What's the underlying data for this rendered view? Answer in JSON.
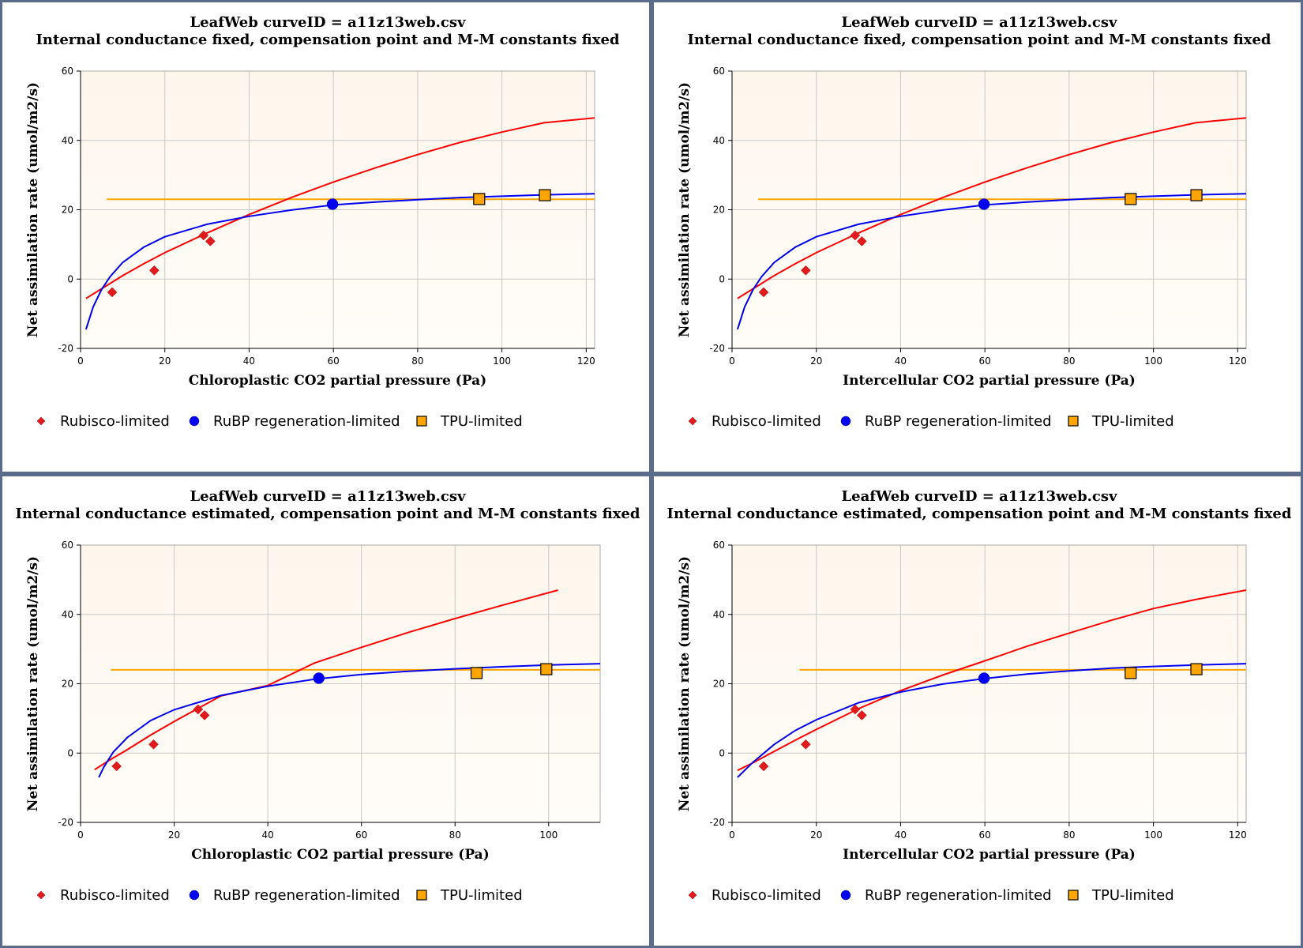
{
  "chart_data": [
    {
      "type": "scatter",
      "title": "LeafWeb curveID = a11z13web.csv",
      "subtitle": "Internal conductance fixed, compensation point and M-M constants fixed",
      "xlabel": "Chloroplastic CO2 partial pressure (Pa)",
      "ylabel": "Net assimilation rate (umol/m2/s)",
      "xlim": [
        0,
        122
      ],
      "ylim": [
        -20,
        60
      ],
      "xticks": [
        0,
        20,
        40,
        60,
        80,
        100,
        120
      ],
      "yticks": [
        -20,
        0,
        20,
        40,
        60
      ],
      "grid": true,
      "legend_position": "bottom",
      "series": [
        {
          "name": "Rubisco-limited",
          "marker": "diamond",
          "color": "#e31a1c",
          "x": [
            7.5,
            17.5,
            29.2,
            30.8
          ],
          "y": [
            -3.8,
            2.5,
            12.6,
            10.9
          ]
        },
        {
          "name": "RuBP regeneration-limited",
          "marker": "circle",
          "color": "#0000ee",
          "x": [
            59.8
          ],
          "y": [
            21.6
          ]
        },
        {
          "name": "TPU-limited",
          "marker": "square",
          "color": "#ffa500",
          "x": [
            94.6,
            110.2
          ],
          "y": [
            23.1,
            24.2
          ]
        }
      ],
      "curves": [
        {
          "series": "Rubisco-limited",
          "color": "#ff0000",
          "x": [
            1.3,
            5,
            10,
            15,
            20,
            30,
            40,
            50,
            60,
            70,
            80,
            90,
            100,
            110,
            122
          ],
          "y": [
            -5.6,
            -2.8,
            1,
            4.4,
            7.6,
            13.3,
            18.6,
            23.5,
            28.0,
            32.1,
            35.9,
            39.4,
            42.4,
            45.1,
            46.5
          ]
        },
        {
          "series": "RuBP regeneration-limited",
          "color": "#0000ee",
          "x": [
            1.3,
            3,
            5,
            7,
            10,
            15,
            20,
            30,
            40,
            50,
            60,
            70,
            80,
            90,
            100,
            110,
            122
          ],
          "y": [
            -14.5,
            -8,
            -3,
            0.7,
            4.8,
            9.2,
            12.2,
            15.8,
            18.1,
            19.9,
            21.4,
            22.2,
            22.9,
            23.5,
            23.9,
            24.3,
            24.6
          ]
        },
        {
          "series": "TPU-limited",
          "color": "#ffa500",
          "x": [
            6.2,
            122
          ],
          "y": [
            23.0,
            23.0
          ]
        }
      ]
    },
    {
      "type": "scatter",
      "title": "LeafWeb curveID = a11z13web.csv",
      "subtitle": "Internal conductance fixed, compensation point and M-M constants fixed",
      "xlabel": "Intercellular CO2 partial pressure (Pa)",
      "ylabel": "Net assimilation rate (umol/m2/s)",
      "xlim": [
        0,
        122
      ],
      "ylim": [
        -20,
        60
      ],
      "xticks": [
        0,
        20,
        40,
        60,
        80,
        100,
        120
      ],
      "yticks": [
        -20,
        0,
        20,
        40,
        60
      ],
      "grid": true,
      "legend_position": "bottom",
      "series": [
        {
          "name": "Rubisco-limited",
          "marker": "diamond",
          "color": "#e31a1c",
          "x": [
            7.5,
            17.5,
            29.2,
            30.8
          ],
          "y": [
            -3.8,
            2.5,
            12.6,
            10.9
          ]
        },
        {
          "name": "RuBP regeneration-limited",
          "marker": "circle",
          "color": "#0000ee",
          "x": [
            59.8
          ],
          "y": [
            21.6
          ]
        },
        {
          "name": "TPU-limited",
          "marker": "square",
          "color": "#ffa500",
          "x": [
            94.6,
            110.2
          ],
          "y": [
            23.1,
            24.2
          ]
        }
      ],
      "curves": [
        {
          "series": "Rubisco-limited",
          "color": "#ff0000",
          "x": [
            1.3,
            5,
            10,
            15,
            20,
            30,
            40,
            50,
            60,
            70,
            80,
            90,
            100,
            110,
            122
          ],
          "y": [
            -5.6,
            -2.8,
            1,
            4.4,
            7.6,
            13.3,
            18.6,
            23.5,
            28.0,
            32.1,
            35.9,
            39.4,
            42.4,
            45.1,
            46.5
          ]
        },
        {
          "series": "RuBP regeneration-limited",
          "color": "#0000ee",
          "x": [
            1.3,
            3,
            5,
            7,
            10,
            15,
            20,
            30,
            40,
            50,
            60,
            70,
            80,
            90,
            100,
            110,
            122
          ],
          "y": [
            -14.5,
            -8,
            -3,
            0.7,
            4.8,
            9.2,
            12.2,
            15.8,
            18.1,
            19.9,
            21.4,
            22.2,
            22.9,
            23.5,
            23.9,
            24.3,
            24.6
          ]
        },
        {
          "series": "TPU-limited",
          "color": "#ffa500",
          "x": [
            6.2,
            122
          ],
          "y": [
            23.0,
            23.0
          ]
        }
      ]
    },
    {
      "type": "scatter",
      "title": "LeafWeb curveID = a11z13web.csv",
      "subtitle": "Internal conductance estimated, compensation point and M-M constants fixed",
      "xlabel": "Chloroplastic CO2 partial pressure (Pa)",
      "ylabel": "Net assimilation rate (umol/m2/s)",
      "xlim": [
        0,
        111
      ],
      "ylim": [
        -20,
        60
      ],
      "xticks": [
        0,
        20,
        40,
        60,
        80,
        100
      ],
      "yticks": [
        -20,
        0,
        20,
        40,
        60
      ],
      "grid": true,
      "legend_position": "bottom",
      "series": [
        {
          "name": "Rubisco-limited",
          "marker": "diamond",
          "color": "#e31a1c",
          "x": [
            7.7,
            15.6,
            25.1,
            26.5
          ],
          "y": [
            -3.8,
            2.5,
            12.6,
            10.9
          ]
        },
        {
          "name": "RuBP regeneration-limited",
          "marker": "circle",
          "color": "#0000ee",
          "x": [
            50.9
          ],
          "y": [
            21.6
          ]
        },
        {
          "name": "TPU-limited",
          "marker": "square",
          "color": "#ffa500",
          "x": [
            84.6,
            99.5
          ],
          "y": [
            23.1,
            24.2
          ]
        }
      ],
      "curves": [
        {
          "series": "Rubisco-limited",
          "color": "#ff0000",
          "x": [
            3,
            6,
            10,
            15,
            20,
            30,
            40,
            50,
            60,
            70,
            80,
            90,
            102
          ],
          "y": [
            -4.8,
            -2.2,
            1,
            5.2,
            9.1,
            16.5,
            19.5,
            26,
            30.5,
            34.8,
            38.8,
            42.6,
            47
          ]
        },
        {
          "series": "RuBP regeneration-limited",
          "color": "#0000ee",
          "x": [
            3.9,
            5,
            7,
            10,
            15,
            20,
            30,
            40,
            50,
            60,
            70,
            80,
            90,
            100,
            111
          ],
          "y": [
            -7,
            -4,
            0.3,
            4.5,
            9.4,
            12.5,
            16.6,
            19.3,
            21.3,
            22.7,
            23.6,
            24.3,
            24.9,
            25.4,
            25.8
          ]
        },
        {
          "series": "TPU-limited",
          "color": "#ffa500",
          "x": [
            6.5,
            111
          ],
          "y": [
            24.0,
            24.0
          ]
        }
      ]
    },
    {
      "type": "scatter",
      "title": "LeafWeb curveID = a11z13web.csv",
      "subtitle": "Internal conductance estimated, compensation point and M-M constants fixed",
      "xlabel": "Intercellular CO2 partial pressure (Pa)",
      "ylabel": "Net assimilation rate (umol/m2/s)",
      "xlim": [
        0,
        122
      ],
      "ylim": [
        -20,
        60
      ],
      "xticks": [
        0,
        20,
        40,
        60,
        80,
        100,
        120
      ],
      "yticks": [
        -20,
        0,
        20,
        40,
        60
      ],
      "grid": true,
      "legend_position": "bottom",
      "series": [
        {
          "name": "Rubisco-limited",
          "marker": "diamond",
          "color": "#e31a1c",
          "x": [
            7.5,
            17.5,
            29.2,
            30.8
          ],
          "y": [
            -3.8,
            2.5,
            12.6,
            10.9
          ]
        },
        {
          "name": "RuBP regeneration-limited",
          "marker": "circle",
          "color": "#0000ee",
          "x": [
            59.8
          ],
          "y": [
            21.6
          ]
        },
        {
          "name": "TPU-limited",
          "marker": "square",
          "color": "#ffa500",
          "x": [
            94.6,
            110.2
          ],
          "y": [
            23.1,
            24.2
          ]
        }
      ],
      "curves": [
        {
          "series": "Rubisco-limited",
          "color": "#ff0000",
          "x": [
            1.3,
            5,
            10,
            15,
            20,
            30,
            40,
            50,
            60,
            70,
            80,
            90,
            100,
            110,
            122
          ],
          "y": [
            -5.0,
            -2.8,
            0.5,
            3.7,
            6.8,
            12.8,
            18.0,
            22.5,
            26.6,
            30.8,
            34.6,
            38.3,
            41.7,
            44.3,
            47.0
          ]
        },
        {
          "series": "RuBP regeneration-limited",
          "color": "#0000ee",
          "x": [
            1.3,
            5,
            10,
            15,
            20,
            30,
            40,
            50,
            60,
            70,
            80,
            90,
            100,
            110,
            122
          ],
          "y": [
            -7,
            -2.6,
            2.5,
            6.5,
            9.6,
            14.5,
            17.6,
            19.9,
            21.5,
            22.8,
            23.7,
            24.5,
            25.0,
            25.4,
            25.8
          ]
        },
        {
          "series": "TPU-limited",
          "color": "#ffa500",
          "x": [
            16,
            122
          ],
          "y": [
            24.0,
            24.0
          ]
        }
      ]
    }
  ],
  "colors": {
    "frame": "#5b6b8c",
    "plot_bg_top": "#fdf6ec",
    "plot_bg_bottom": "#fffdf8",
    "grid": "#c8c8c8"
  }
}
